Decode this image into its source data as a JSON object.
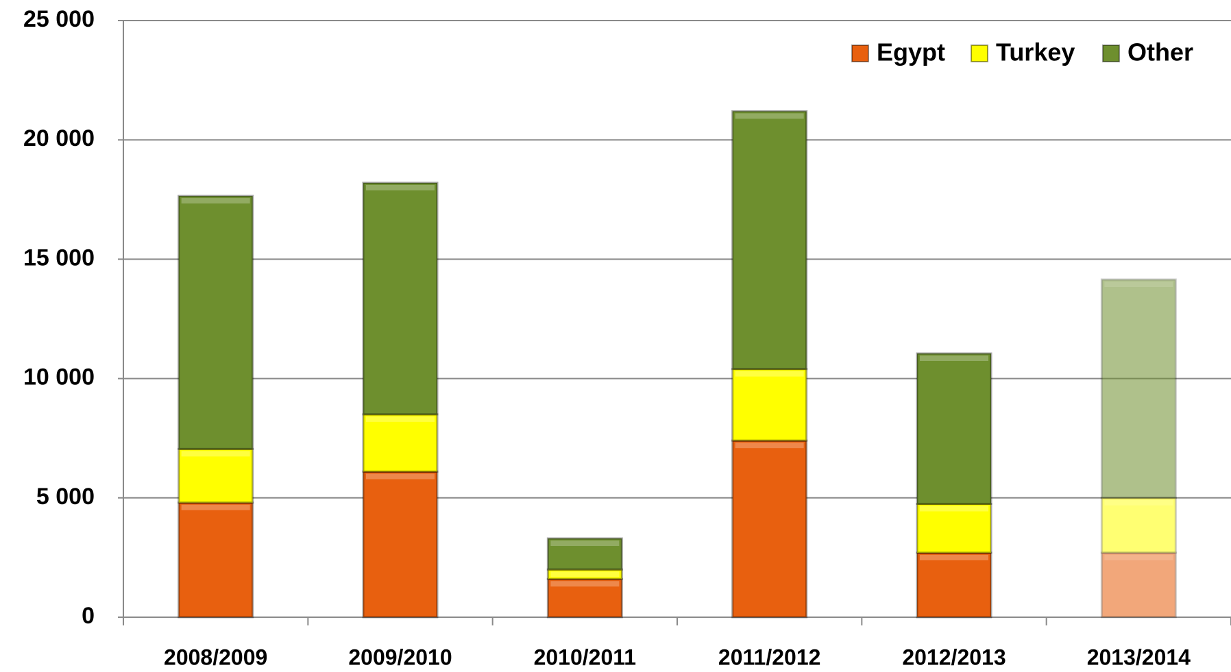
{
  "chart_data": {
    "type": "stacked_bar",
    "categories": [
      "2008/2009",
      "2009/2010",
      "2010/2011",
      "2011/2012",
      "2012/2013",
      "2013/2014"
    ],
    "series": [
      {
        "name": "Egypt",
        "color": "#e8600f",
        "values": [
          4800,
          6100,
          1600,
          7400,
          2700,
          2700
        ]
      },
      {
        "name": "Turkey",
        "color": "#ffff00",
        "values": [
          2250,
          2400,
          400,
          3000,
          2050,
          2300
        ]
      },
      {
        "name": "Other",
        "color": "#6e8f2e",
        "values": [
          10600,
          9700,
          1300,
          10800,
          6300,
          9150
        ]
      }
    ],
    "faded": [
      false,
      false,
      false,
      false,
      false,
      true
    ],
    "ylim": [
      0,
      25000
    ],
    "yticks": [
      {
        "value": 0,
        "label": "0"
      },
      {
        "value": 5000,
        "label": "5 000"
      },
      {
        "value": 10000,
        "label": "10 000"
      },
      {
        "value": 15000,
        "label": "15 000"
      },
      {
        "value": 20000,
        "label": "20 000"
      },
      {
        "value": 25000,
        "label": "25 000"
      }
    ],
    "grid": true,
    "legend": "top-right"
  }
}
